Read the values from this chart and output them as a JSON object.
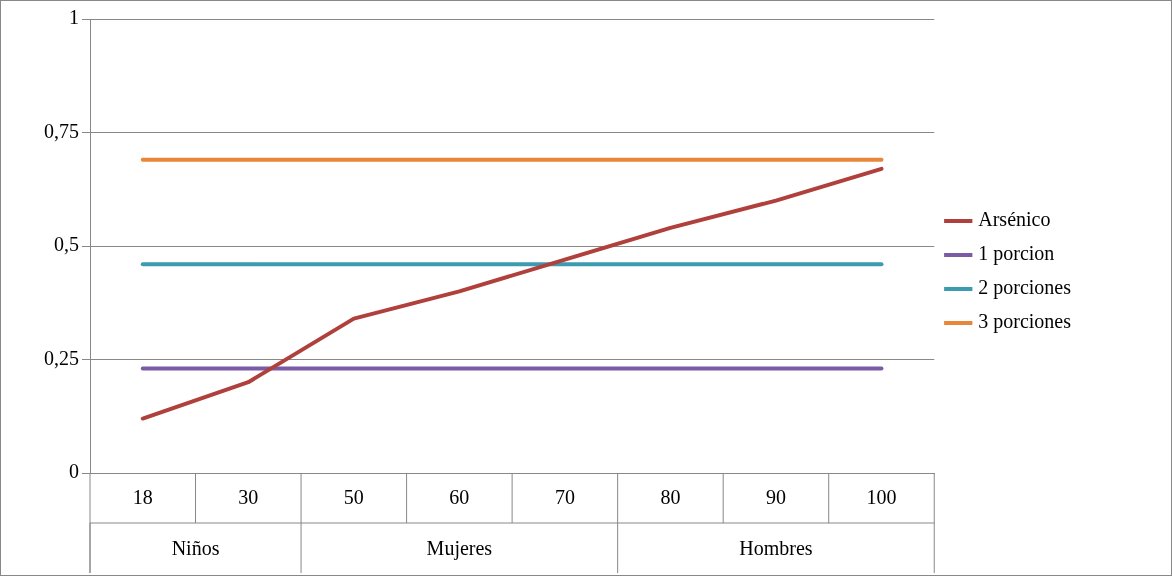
{
  "chart_data": {
    "type": "line",
    "categories": [
      "18",
      "30",
      "50",
      "60",
      "70",
      "80",
      "90",
      "100"
    ],
    "series": [
      {
        "name": "Arsénico",
        "color": "#b0403c",
        "values": [
          0.12,
          0.2,
          0.34,
          0.4,
          0.47,
          0.54,
          0.6,
          0.67
        ]
      },
      {
        "name": "1 porcion",
        "color": "#7b5aa6",
        "values": [
          0.23,
          0.23,
          0.23,
          0.23,
          0.23,
          0.23,
          0.23,
          0.23
        ]
      },
      {
        "name": "2 porciones",
        "color": "#3d9bb0",
        "values": [
          0.46,
          0.46,
          0.46,
          0.46,
          0.46,
          0.46,
          0.46,
          0.46
        ]
      },
      {
        "name": "3 porciones",
        "color": "#e8873a",
        "values": [
          0.69,
          0.69,
          0.69,
          0.69,
          0.69,
          0.69,
          0.69,
          0.69
        ]
      }
    ],
    "annotations": [
      "Niños",
      "Mujeres",
      "Hombres"
    ],
    "ylim": [
      0,
      1
    ],
    "yticks": [
      0,
      {
        "value": 0.25,
        "label": "0,25"
      },
      {
        "value": 0.5,
        "label": "0,5"
      },
      {
        "value": 0.75,
        "label": "0,75"
      },
      1
    ],
    "grid": "y",
    "legend": "right",
    "marker": "none",
    "line_style": "solid"
  }
}
